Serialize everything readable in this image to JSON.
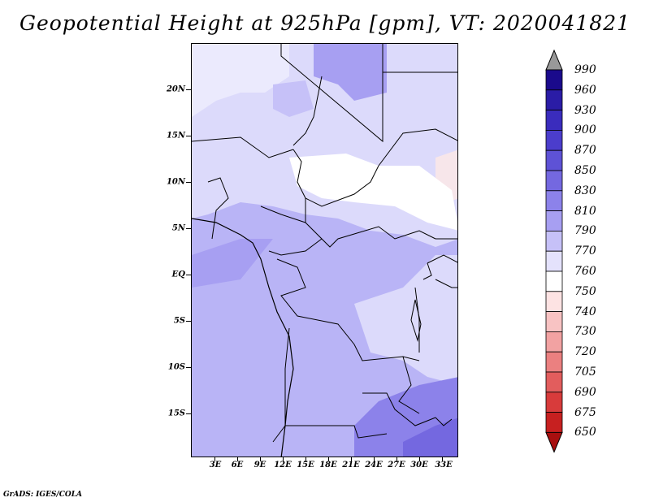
{
  "title": "Geopotential Height at 925hPa [gpm], VT: 2020041821",
  "credit": "GrADS: IGES/COLA",
  "map": {
    "lat_labels": [
      "20N",
      "15N",
      "10N",
      "5N",
      "EQ",
      "5S",
      "10S",
      "15S"
    ],
    "lon_labels": [
      "3E",
      "6E",
      "9E",
      "12E",
      "15E",
      "18E",
      "21E",
      "24E",
      "27E",
      "30E",
      "33E"
    ]
  },
  "colorbar": {
    "labels": [
      "990",
      "960",
      "930",
      "900",
      "870",
      "850",
      "830",
      "810",
      "790",
      "770",
      "760",
      "750",
      "740",
      "730",
      "720",
      "705",
      "690",
      "675",
      "650"
    ],
    "colors": [
      "#1a0a8c",
      "#2a1ca6",
      "#3a2cbd",
      "#4b3dcc",
      "#5e52d6",
      "#7468e0",
      "#8c82ea",
      "#a79ff2",
      "#c6c1f8",
      "#e4e2fc",
      "#ffffff",
      "#fde3e3",
      "#f8c3c3",
      "#f2a2a2",
      "#eb8080",
      "#e25d5d",
      "#d83b3b",
      "#c72020",
      "#a80f0f"
    ]
  }
}
